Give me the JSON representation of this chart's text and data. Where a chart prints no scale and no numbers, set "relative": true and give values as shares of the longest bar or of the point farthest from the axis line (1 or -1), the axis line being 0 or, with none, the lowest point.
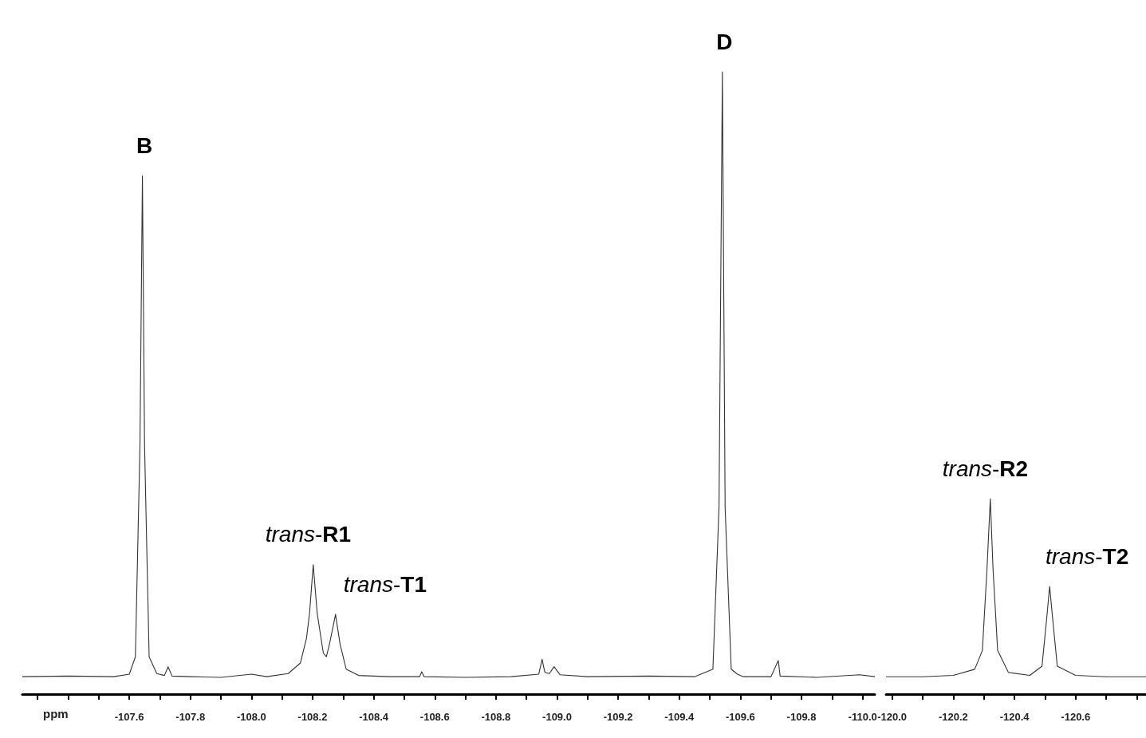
{
  "chart_data": [
    {
      "type": "line",
      "relative": true,
      "color": "#333333",
      "xlabel": "ppm",
      "tick_labels": "x",
      "xlim": [
        -107.25,
        -110.04
      ],
      "xticks": [
        {
          "value": -107.3,
          "label": null
        },
        {
          "value": -107.4,
          "label": null
        },
        {
          "value": -107.5,
          "label": null
        },
        {
          "value": -107.6,
          "label": "-107.6"
        },
        {
          "value": -107.7,
          "label": null
        },
        {
          "value": -107.8,
          "label": "-107.8"
        },
        {
          "value": -107.9,
          "label": null
        },
        {
          "value": -108.0,
          "label": "-108.0"
        },
        {
          "value": -108.1,
          "label": null
        },
        {
          "value": -108.2,
          "label": "-108.2"
        },
        {
          "value": -108.3,
          "label": null
        },
        {
          "value": -108.4,
          "label": "-108.4"
        },
        {
          "value": -108.5,
          "label": null
        },
        {
          "value": -108.6,
          "label": "-108.6"
        },
        {
          "value": -108.7,
          "label": null
        },
        {
          "value": -108.8,
          "label": "-108.8"
        },
        {
          "value": -108.9,
          "label": null
        },
        {
          "value": -109.0,
          "label": "-109.0"
        },
        {
          "value": -109.1,
          "label": null
        },
        {
          "value": -109.2,
          "label": "-109.2"
        },
        {
          "value": -109.3,
          "label": null
        },
        {
          "value": -109.4,
          "label": "-109.4"
        },
        {
          "value": -109.5,
          "label": null
        },
        {
          "value": -109.6,
          "label": "-109.6"
        },
        {
          "value": -109.7,
          "label": null
        },
        {
          "value": -109.8,
          "label": "-109.8"
        },
        {
          "value": -109.9,
          "label": null
        },
        {
          "value": -110.0,
          "label": "-110.0"
        }
      ],
      "x": [
        -107.25,
        -107.4,
        -107.55,
        -107.6,
        -107.62,
        -107.635,
        -107.643,
        -107.65,
        -107.665,
        -107.69,
        -107.715,
        -107.727,
        -107.74,
        -107.8,
        -107.9,
        -108.0,
        -108.05,
        -108.12,
        -108.16,
        -108.18,
        -108.19,
        -108.202,
        -108.215,
        -108.235,
        -108.245,
        -108.255,
        -108.275,
        -108.29,
        -108.31,
        -108.35,
        -108.45,
        -108.55,
        -108.557,
        -108.565,
        -108.7,
        -108.85,
        -108.94,
        -108.951,
        -108.96,
        -108.975,
        -108.99,
        -109.01,
        -109.1,
        -109.3,
        -109.45,
        -109.51,
        -109.53,
        -109.541,
        -109.55,
        -109.57,
        -109.59,
        -109.61,
        -109.7,
        -109.724,
        -109.73,
        -109.85,
        -109.99,
        -110.04
      ],
      "values": [
        0.028,
        0.029,
        0.028,
        0.032,
        0.06,
        0.4,
        0.833,
        0.4,
        0.06,
        0.033,
        0.03,
        0.044,
        0.029,
        0.028,
        0.027,
        0.032,
        0.028,
        0.033,
        0.05,
        0.09,
        0.13,
        0.208,
        0.13,
        0.066,
        0.06,
        0.08,
        0.128,
        0.08,
        0.04,
        0.03,
        0.028,
        0.028,
        0.036,
        0.028,
        0.027,
        0.028,
        0.032,
        0.056,
        0.035,
        0.033,
        0.044,
        0.031,
        0.028,
        0.029,
        0.028,
        0.04,
        0.3,
        1.0,
        0.3,
        0.04,
        0.032,
        0.028,
        0.028,
        0.054,
        0.029,
        0.027,
        0.031,
        0.028
      ],
      "annotations": [
        {
          "text": "B",
          "x": -107.643,
          "y": 0.833
        },
        {
          "text": "D",
          "x": -109.541,
          "y": 1.0
        },
        {
          "text": "trans-R1",
          "x": -108.202,
          "y": 0.208
        },
        {
          "text": "trans-T1",
          "x": -108.275,
          "y": 0.128
        }
      ]
    },
    {
      "type": "line",
      "relative": true,
      "color": "#333333",
      "tick_labels": "x",
      "xlim": [
        -119.98,
        -120.83
      ],
      "xticks": [
        {
          "value": -120.0,
          "label": "-120.0"
        },
        {
          "value": -120.1,
          "label": null
        },
        {
          "value": -120.2,
          "label": "-120.2"
        },
        {
          "value": -120.3,
          "label": null
        },
        {
          "value": -120.4,
          "label": "-120.4"
        },
        {
          "value": -120.5,
          "label": null
        },
        {
          "value": -120.6,
          "label": "-120.6"
        },
        {
          "value": -120.7,
          "label": null
        },
        {
          "value": -120.8,
          "label": null
        }
      ],
      "x": [
        -119.98,
        -120.1,
        -120.2,
        -120.27,
        -120.295,
        -120.31,
        -120.321,
        -120.33,
        -120.345,
        -120.38,
        -120.45,
        -120.49,
        -120.505,
        -120.515,
        -120.525,
        -120.54,
        -120.6,
        -120.7,
        -120.83
      ],
      "values": [
        0.089,
        0.089,
        0.096,
        0.127,
        0.223,
        0.637,
        1.0,
        0.637,
        0.223,
        0.111,
        0.096,
        0.143,
        0.382,
        0.551,
        0.382,
        0.143,
        0.096,
        0.089,
        0.089
      ],
      "annotations": [
        {
          "text": "trans-R2",
          "x": -120.321,
          "y": 1.0
        },
        {
          "text": "trans-T2",
          "x": -120.515,
          "y": 0.551
        }
      ]
    }
  ]
}
